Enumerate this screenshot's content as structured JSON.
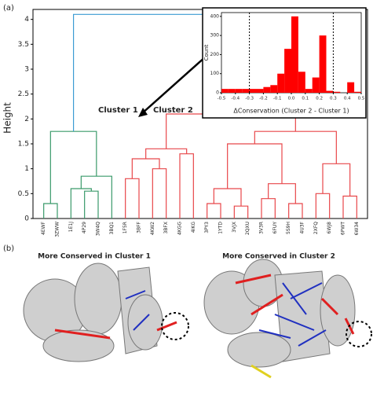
{
  "chart_data": [
    {
      "type": "dendrogram",
      "panel_label": "(a)",
      "ylabel": "Height",
      "leaves": [
        "4EWF",
        "3ZWW",
        "1E1J",
        "4P29",
        "3W4Q",
        "3BQ1",
        "1F5R",
        "3BFF",
        "4KW2",
        "3BFX",
        "4KGG",
        "4IKG",
        "3PY3",
        "1YTD",
        "3VJX",
        "2QXU",
        "3V3R",
        "6FUY",
        "5S9H",
        "4U3F",
        "2XFQ",
        "6WJ8",
        "6PWT",
        "6W34"
      ],
      "merges": [
        [
          0,
          1,
          0.3
        ],
        [
          3,
          4,
          0.55
        ],
        [
          2,
          25,
          0.6
        ],
        [
          26,
          5,
          0.85
        ],
        [
          24,
          27,
          1.75
        ],
        [
          6,
          7,
          0.8
        ],
        [
          8,
          9,
          1.0
        ],
        [
          29,
          30,
          1.2
        ],
        [
          10,
          11,
          1.3
        ],
        [
          31,
          32,
          1.4
        ],
        [
          12,
          13,
          0.3
        ],
        [
          14,
          15,
          0.25
        ],
        [
          34,
          35,
          0.6
        ],
        [
          16,
          17,
          0.4
        ],
        [
          18,
          19,
          0.3
        ],
        [
          37,
          38,
          0.7
        ],
        [
          36,
          39,
          1.5
        ],
        [
          20,
          21,
          0.5
        ],
        [
          22,
          23,
          0.45
        ],
        [
          41,
          42,
          1.1
        ],
        [
          40,
          43,
          1.75
        ],
        [
          33,
          44,
          2.1
        ],
        [
          28,
          45,
          4.1
        ]
      ],
      "link_colors": [
        "#3a9a6a",
        "#3a9a6a",
        "#3a9a6a",
        "#3a9a6a",
        "#3a9a6a",
        "#e8474a",
        "#e8474a",
        "#e8474a",
        "#e8474a",
        "#e8474a",
        "#e8474a",
        "#e8474a",
        "#e8474a",
        "#e8474a",
        "#e8474a",
        "#e8474a",
        "#e8474a",
        "#e8474a",
        "#e8474a",
        "#e8474a",
        "#e8474a",
        "#e8474a",
        "#3b9bd3"
      ],
      "ylim": [
        0,
        4.2
      ],
      "yticks": [
        0,
        0.5,
        1,
        1.5,
        2,
        2.5,
        3,
        3.5,
        4
      ],
      "annotations": [
        "Cluster 1",
        "Cluster 2"
      ]
    },
    {
      "type": "histogram",
      "ylabel": "Count",
      "xlabel": "ΔConservation (Cluster 2 - Cluster 1)",
      "color": "#ff0000",
      "bins": [
        -0.5,
        -0.45,
        -0.4,
        -0.35,
        -0.3,
        -0.25,
        -0.2,
        -0.15,
        -0.1,
        -0.05,
        0,
        0.05,
        0.1,
        0.15,
        0.2,
        0.25,
        0.3,
        0.35,
        0.4,
        0.45,
        0.5
      ],
      "values": [
        20,
        20,
        20,
        20,
        20,
        20,
        30,
        40,
        100,
        230,
        400,
        110,
        20,
        80,
        300,
        10,
        5,
        0,
        55,
        5
      ],
      "vlines": [
        -0.3,
        0.3
      ],
      "xlim": [
        -0.5,
        0.5
      ],
      "xticks": [
        -0.5,
        -0.4,
        -0.3,
        -0.2,
        -0.1,
        {
          "value": 0,
          "label": "0.0"
        },
        0.1,
        0.2,
        0.3,
        0.4,
        0.5
      ],
      "ylim": [
        0,
        420
      ],
      "yticks": [
        0,
        100,
        200,
        300,
        400
      ]
    }
  ],
  "panel_b": {
    "label": "(b)",
    "titles": [
      "More Conserved in Cluster 1",
      "More Conserved in Cluster 2"
    ]
  }
}
